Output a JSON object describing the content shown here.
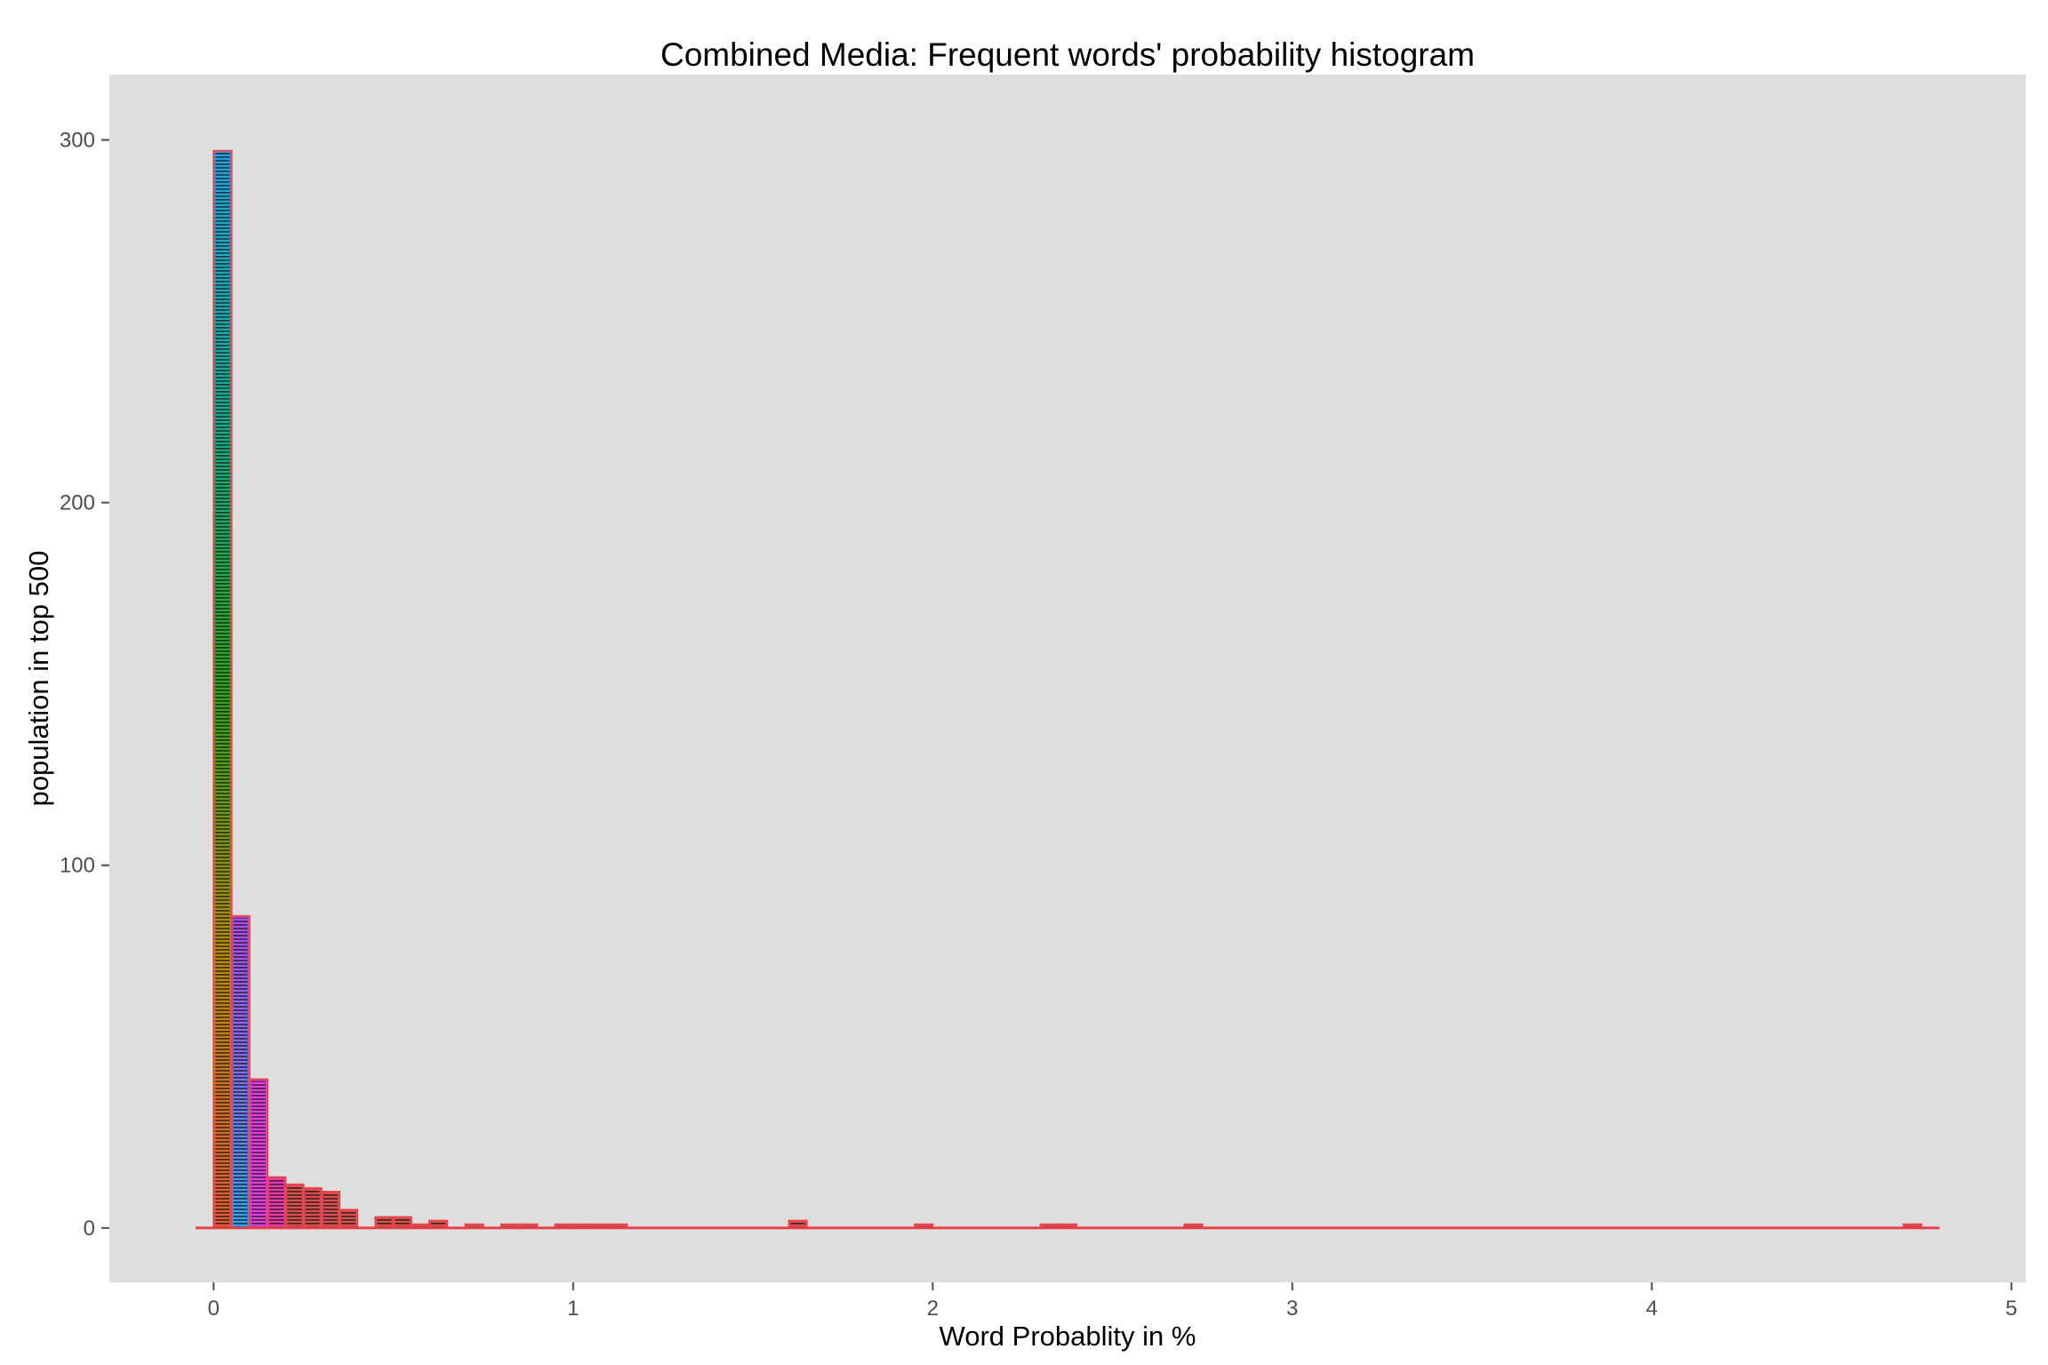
{
  "chart_data": {
    "type": "bar",
    "title": "Combined Media: Frequent words' probability histogram",
    "xlabel": "Word Probablity in %",
    "ylabel": "population in top 500",
    "xlim": [
      -0.29,
      5.04
    ],
    "ylim": [
      -15,
      318
    ],
    "x_ticks": [
      0,
      1,
      2,
      3,
      4,
      5
    ],
    "x_tick_labels": [
      "0",
      "1",
      "2",
      "3",
      "4",
      "5"
    ],
    "y_ticks": [
      0,
      100,
      200,
      300
    ],
    "y_tick_labels": [
      "0",
      "100",
      "200",
      "300"
    ],
    "grid": false,
    "legend": "none",
    "bin_width": 0.05,
    "bins_start": [
      0,
      0.05,
      0.1,
      0.15,
      0.2,
      0.25,
      0.3,
      0.35,
      0.45,
      0.5,
      0.55,
      0.6,
      0.7,
      0.8,
      0.85,
      0.95,
      1.0,
      1.05,
      1.1,
      1.6,
      1.95,
      2.3,
      2.35,
      2.7,
      4.7
    ],
    "values": [
      297,
      86,
      41,
      14,
      12,
      11,
      10,
      5,
      3,
      3,
      1,
      2,
      1,
      1,
      1,
      1,
      1,
      1,
      1,
      2,
      1,
      1,
      1,
      1,
      1
    ],
    "baseline_range": [
      -0.05,
      4.8
    ],
    "colors": {
      "panel_background": "#dedede",
      "bar_outline": "#e8434b",
      "bar_fill_default": "#d7504f",
      "hatch": "#111111",
      "first_bin_gradient": [
        "#e45a37",
        "#b88b10",
        "#2ea31a",
        "#15ac8c",
        "#25a2e6"
      ],
      "second_bin_gradient": [
        "#2fa2ee",
        "#7a6fe8",
        "#b04ce8"
      ],
      "third_bin_fill": "#e03ee0",
      "fourth_bin_fill": "#e83aa8"
    }
  }
}
